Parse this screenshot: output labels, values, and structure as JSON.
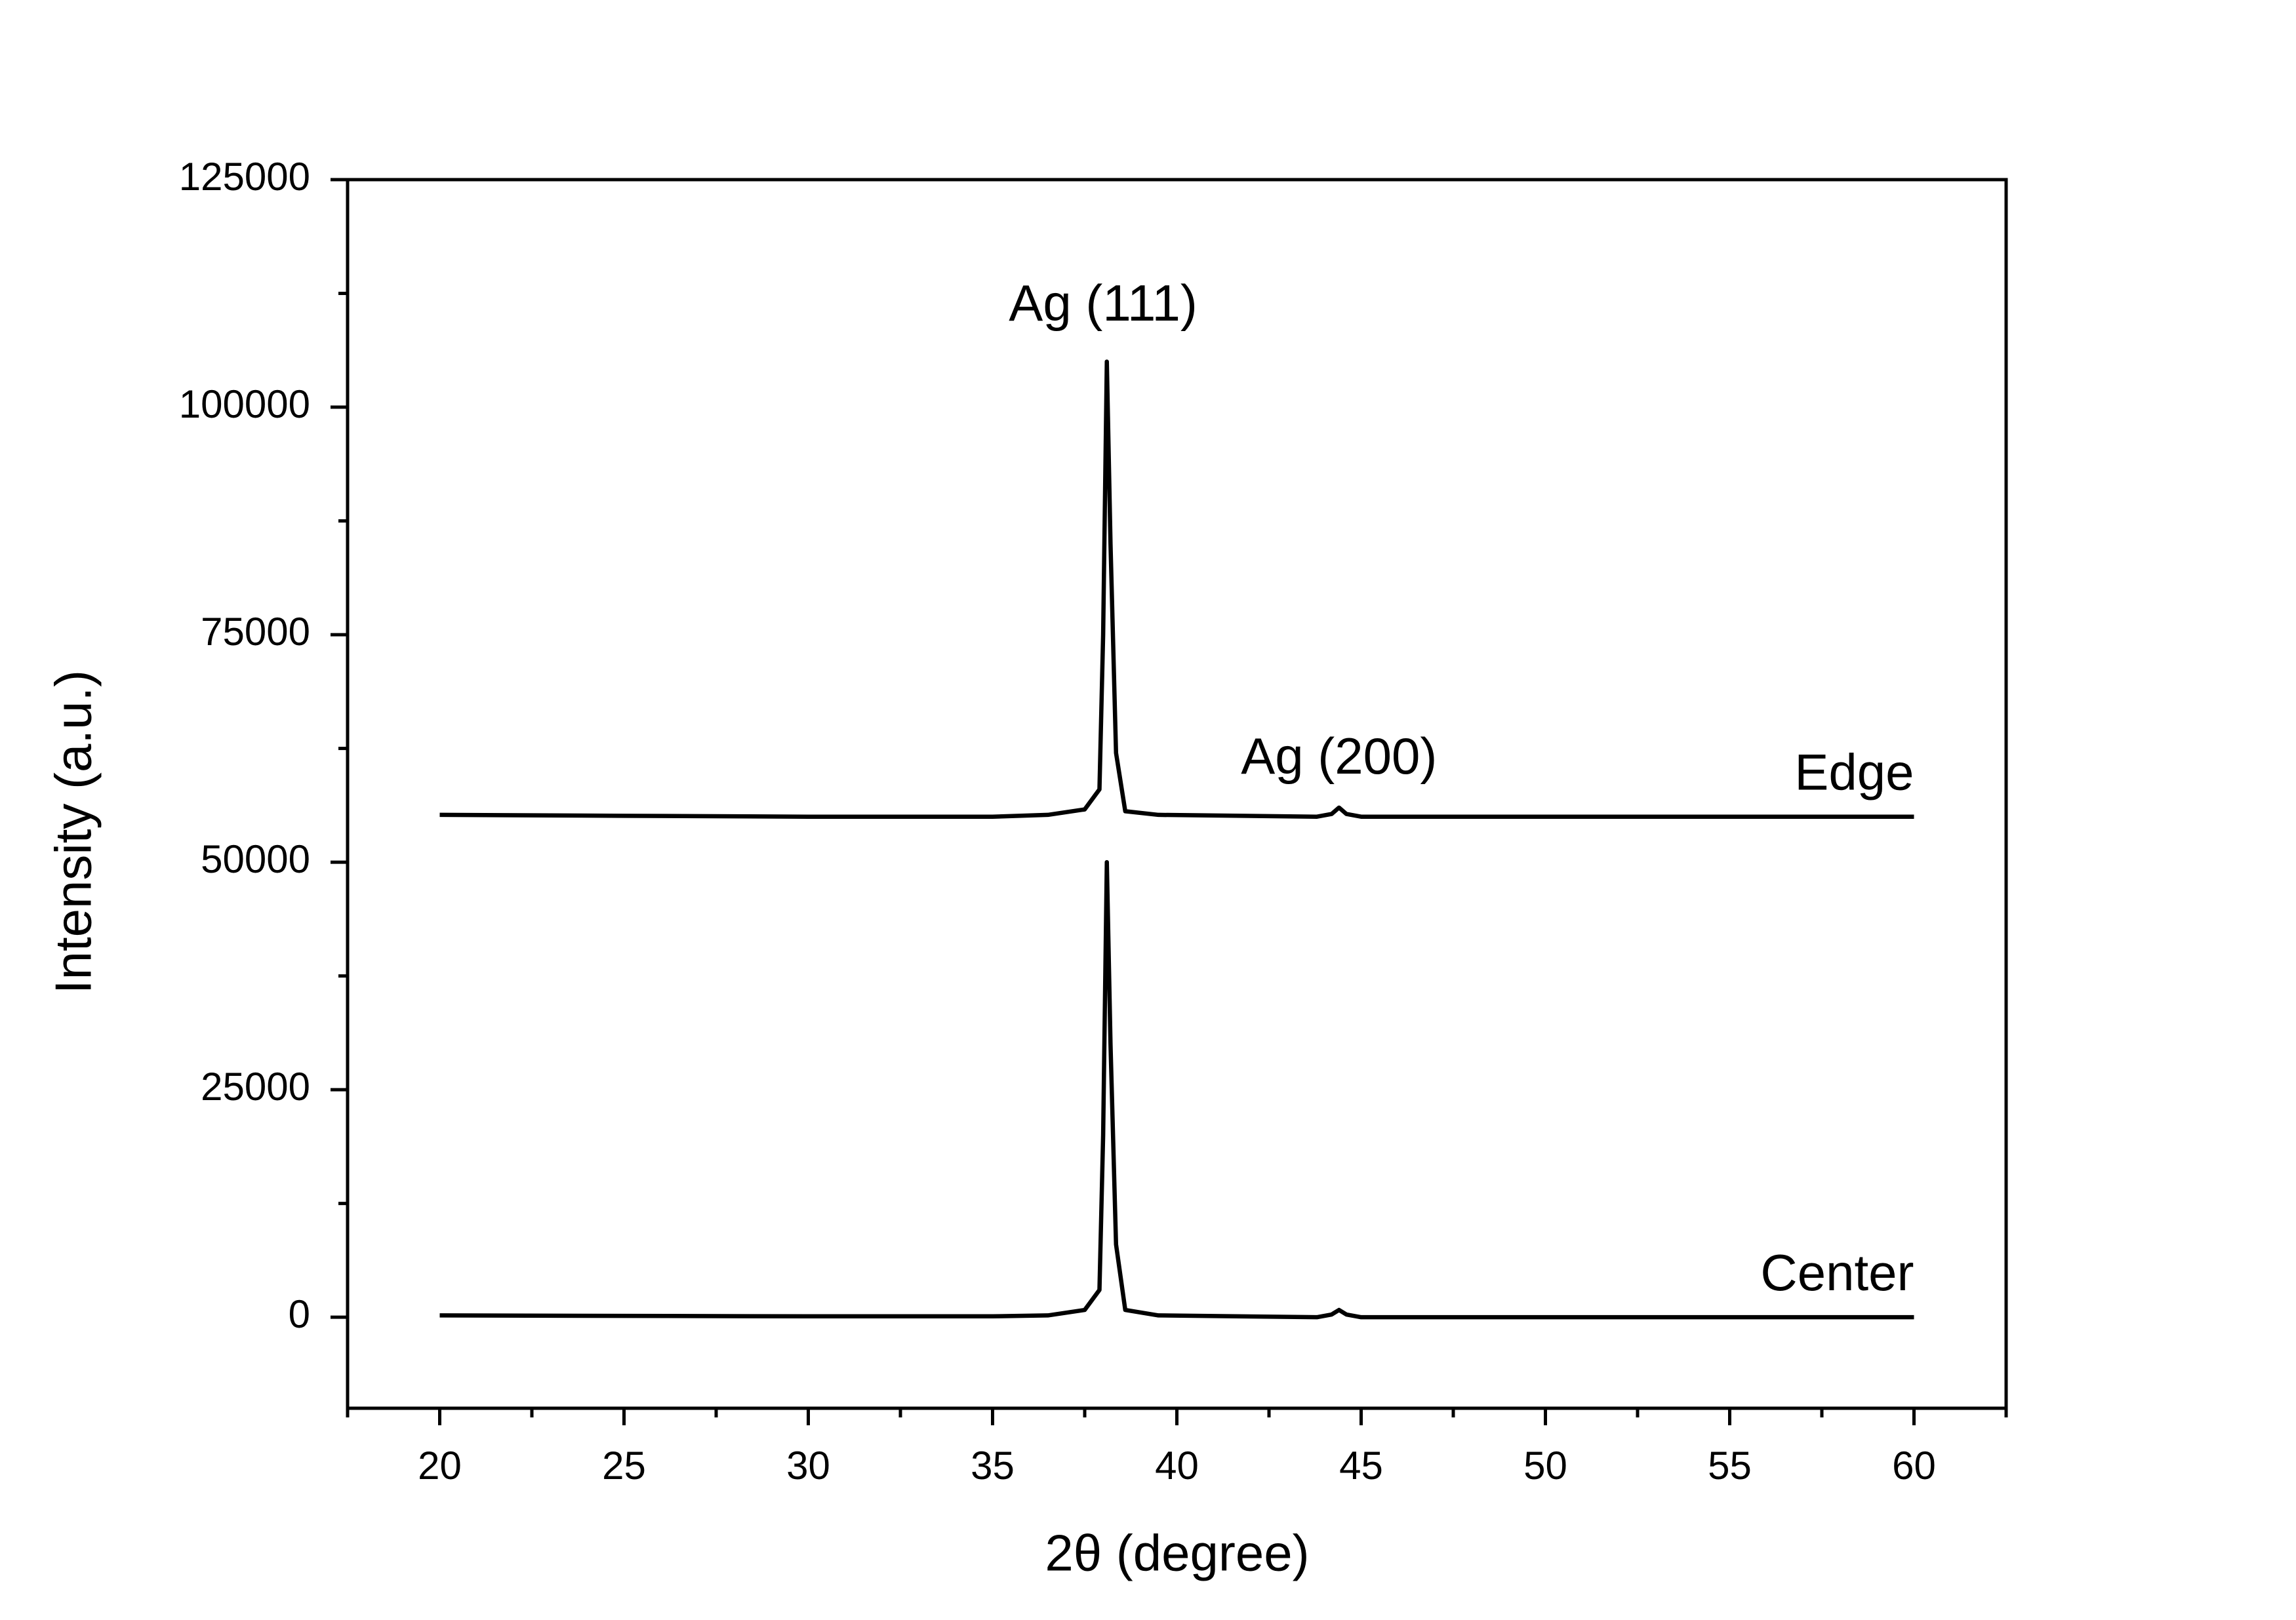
{
  "chart_data": {
    "type": "line",
    "xlabel": "2θ (degree)",
    "ylabel": "Intensity (a.u.)",
    "x": [
      20,
      25,
      30,
      35,
      36.5,
      37.5,
      37.9,
      38.0,
      38.1,
      38.2,
      38.35,
      38.6,
      39.5,
      43.8,
      44.2,
      44.4,
      44.6,
      45,
      50,
      55,
      60
    ],
    "series": [
      {
        "name": "Edge",
        "color": "#000000",
        "values": [
          55200,
          55100,
          55000,
          55000,
          55200,
          55800,
          58000,
          75000,
          105000,
          85000,
          62000,
          55600,
          55200,
          55000,
          55300,
          56000,
          55300,
          55000,
          55000,
          55000,
          55000
        ]
      },
      {
        "name": "Center",
        "color": "#000000",
        "values": [
          200,
          150,
          100,
          100,
          200,
          800,
          3000,
          20000,
          50000,
          30000,
          8000,
          800,
          200,
          0,
          300,
          800,
          300,
          0,
          0,
          0,
          0
        ]
      }
    ],
    "annotations": [
      {
        "text": "Ag (111)",
        "x": 38.0,
        "y": 111000
      },
      {
        "text": "Ag (200)",
        "x": 44.4,
        "y": 61200
      }
    ],
    "xlim": [
      17.5,
      62.5
    ],
    "ylim": [
      -10000,
      125000
    ],
    "xticks": [
      20,
      25,
      30,
      35,
      40,
      45,
      50,
      55,
      60
    ],
    "yticks": [
      0,
      25000,
      50000,
      75000,
      100000,
      125000
    ],
    "grid": false
  }
}
